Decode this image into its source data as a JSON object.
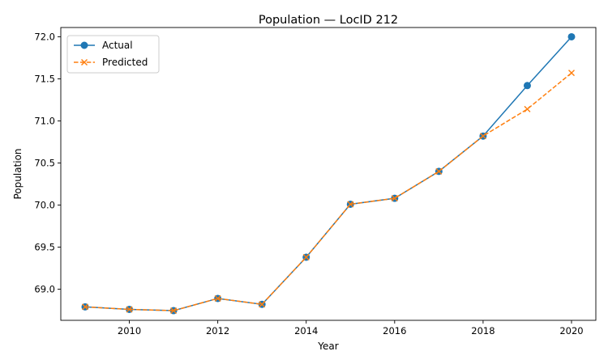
{
  "chart_data": {
    "type": "line",
    "title": "Population — LocID 212",
    "xlabel": "Year",
    "ylabel": "Population",
    "x": [
      2009,
      2010,
      2011,
      2012,
      2013,
      2014,
      2015,
      2016,
      2017,
      2018,
      2019,
      2020
    ],
    "xlim": [
      2008.45,
      2020.55
    ],
    "ylim": [
      68.63,
      72.11
    ],
    "xticks": [
      2010,
      2012,
      2014,
      2016,
      2018,
      2020
    ],
    "yticks": [
      69.0,
      69.5,
      70.0,
      70.5,
      71.0,
      71.5,
      72.0
    ],
    "grid": false,
    "legend_position": "top-left",
    "series": [
      {
        "name": "Actual",
        "color": "#1f77b4",
        "marker": "circle",
        "line_style": "solid",
        "values": [
          68.79,
          68.76,
          68.745,
          68.89,
          68.82,
          69.38,
          70.01,
          70.08,
          70.4,
          70.82,
          71.42,
          72.0
        ]
      },
      {
        "name": "Predicted",
        "color": "#ff7f0e",
        "marker": "x",
        "line_style": "dashed",
        "values": [
          68.79,
          68.76,
          68.745,
          68.89,
          68.82,
          69.38,
          70.01,
          70.08,
          70.4,
          70.82,
          71.14,
          71.57
        ]
      }
    ]
  }
}
